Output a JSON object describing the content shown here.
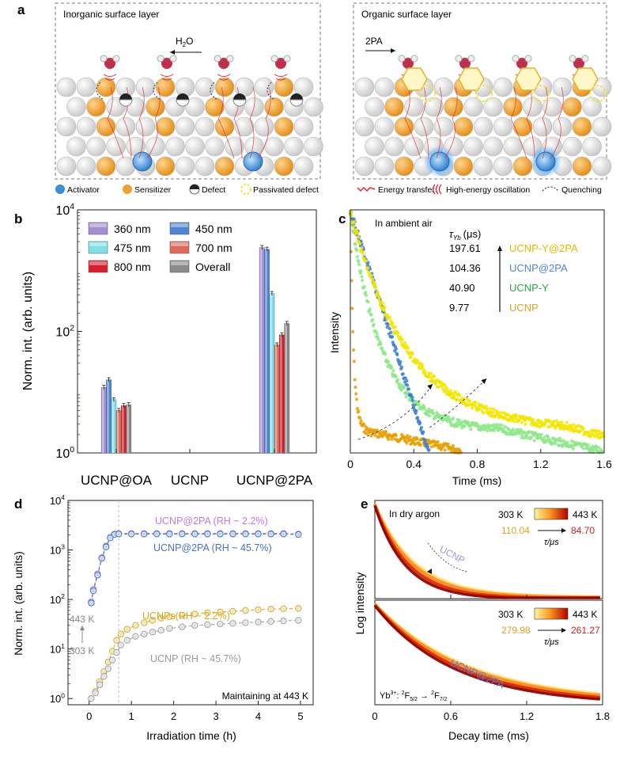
{
  "panel_letters": {
    "a": "a",
    "b": "b",
    "c": "c",
    "d": "d",
    "e": "e"
  },
  "panel_a": {
    "left_title": "Inorganic surface layer",
    "right_title": "Organic surface layer",
    "water_label_main": "H",
    "water_label_sub": "2",
    "water_label_end": "O",
    "ligand_label": "2PA",
    "legend": [
      {
        "icon": "activator-icon",
        "label": "Activator"
      },
      {
        "icon": "sensitizer-icon",
        "label": "Sensitizer"
      },
      {
        "icon": "defect-icon",
        "label": "Defect"
      },
      {
        "icon": "passivated-defect-icon",
        "label": "Passivated defect"
      },
      {
        "icon": "energy-transfer-icon",
        "label": "Energy transfer"
      },
      {
        "icon": "oscillation-icon",
        "label": "High-energy oscillation"
      },
      {
        "icon": "quenching-icon",
        "label": "Quenching"
      }
    ],
    "colors": {
      "activator": "#3a8fd9",
      "sensitizer": "#f0a030",
      "host": "#d6d6d6",
      "passivated": "#f3e34a",
      "energy": "#d8283a"
    }
  },
  "chart_data": [
    {
      "panel": "b",
      "type": "bar",
      "ylabel": "Norm. int. (arb. units)",
      "yscale": "log",
      "ylim": [
        1,
        10000
      ],
      "yticks": [
        {
          "base": "10",
          "exp": "0",
          "value": 1
        },
        {
          "base": "10",
          "exp": "2",
          "value": 100
        },
        {
          "base": "10",
          "exp": "4",
          "value": 10000
        }
      ],
      "categories": [
        "UCNP@OA",
        "UCNP",
        "UCNP@2PA"
      ],
      "series": [
        {
          "name": "360 nm",
          "color": "#a38fd6",
          "values": [
            12,
            1,
            2400
          ]
        },
        {
          "name": "450 nm",
          "color": "#4f86cf",
          "values": [
            16,
            1,
            2250
          ]
        },
        {
          "name": "475 nm",
          "color": "#7fe0e6",
          "values": [
            7.5,
            1,
            420
          ]
        },
        {
          "name": "700 nm",
          "color": "#e0685a",
          "values": [
            5.0,
            1,
            60
          ]
        },
        {
          "name": "800 nm",
          "color": "#d81e2a",
          "values": [
            6.0,
            1,
            88
          ]
        },
        {
          "name": "Overall",
          "color": "#8a8a8a",
          "values": [
            6.2,
            1,
            135
          ]
        }
      ]
    },
    {
      "panel": "c",
      "type": "scatter",
      "xlabel": "Time (ms)",
      "ylabel": "Intensity",
      "xlim": [
        0,
        1.6
      ],
      "xticks": [
        "0",
        "0.4",
        "0.8",
        "1.2",
        "1.6"
      ],
      "annotation": "In ambient air",
      "tau_label": "τ",
      "tau_sub": "Yb",
      "tau_unit": "(μs)",
      "series": [
        {
          "name": "UCNP-Y@2PA",
          "tau": "197.61",
          "tau_us": 197.61,
          "color": "#f2e600",
          "label_color": "#e8b800"
        },
        {
          "name": "UCNP@2PA",
          "tau": "104.36",
          "tau_us": 104.36,
          "color": "#3c7fd6",
          "label_color": "#4a86d4"
        },
        {
          "name": "UCNP-Y",
          "tau": "40.90",
          "tau_us": 40.9,
          "color": "#8ee88a",
          "label_color": "#2aa84a"
        },
        {
          "name": "UCNP",
          "tau": "9.77",
          "tau_us": 9.77,
          "color": "#e8a000",
          "label_color": "#e0a020"
        }
      ]
    },
    {
      "panel": "d",
      "type": "line",
      "xlabel": "Irradiation time (h)",
      "ylabel": "Norm. int. (arb. units)",
      "yscale": "log",
      "xlim": [
        -0.5,
        5.3
      ],
      "ylim": [
        0.75,
        10000
      ],
      "xticks": [
        "0",
        "1",
        "2",
        "3",
        "4",
        "5"
      ],
      "yticks": [
        {
          "base": "10",
          "exp": "0",
          "value": 1
        },
        {
          "base": "10",
          "exp": "1",
          "value": 10
        },
        {
          "base": "10",
          "exp": "2",
          "value": 100
        },
        {
          "base": "10",
          "exp": "3",
          "value": 1000
        },
        {
          "base": "10",
          "exp": "4",
          "value": 10000
        }
      ],
      "annotations": {
        "temp_high": "443 K",
        "temp_low": "303 K",
        "maintain": "Maintaining at 443 K"
      },
      "series": [
        {
          "name": "UCNP@2PA (RH ~ 2.2%)",
          "color": "#b87fe0",
          "label_color": "#c07ad8",
          "x": [
            0.05,
            0.1,
            0.2,
            0.3,
            0.4,
            0.5,
            0.6,
            0.7,
            1.0,
            1.3,
            1.6,
            1.9,
            2.2,
            2.5,
            2.8,
            3.1,
            3.4,
            3.7,
            4.0,
            4.3,
            4.6,
            4.95
          ],
          "y": [
            90,
            160,
            330,
            700,
            1200,
            1800,
            2100,
            2150,
            2150,
            2150,
            2150,
            2150,
            2150,
            2150,
            2150,
            2150,
            2150,
            2150,
            2150,
            2150,
            2150,
            2100
          ]
        },
        {
          "name": "UCNP@2PA (RH ~ 45.7%)",
          "color": "#4a7fd0",
          "label_color": "#4670cc",
          "x": [
            0.05,
            0.1,
            0.2,
            0.3,
            0.4,
            0.5,
            0.6,
            0.7,
            1.0,
            1.3,
            1.6,
            1.9,
            2.2,
            2.5,
            2.8,
            3.1,
            3.4,
            3.7,
            4.0,
            4.3,
            4.6,
            4.95
          ],
          "y": [
            85,
            150,
            310,
            680,
            1150,
            1750,
            2050,
            2100,
            2100,
            2100,
            2100,
            2100,
            2100,
            2100,
            2100,
            2100,
            2100,
            2100,
            2100,
            2100,
            2100,
            2050
          ]
        },
        {
          "name": "UCNPs(RH ~ 2.2%)",
          "color": "#d9b23a",
          "label_color": "#d8a820",
          "x": [
            0.05,
            0.15,
            0.25,
            0.35,
            0.45,
            0.55,
            0.65,
            0.75,
            0.9,
            1.1,
            1.3,
            1.5,
            1.7,
            1.9,
            2.2,
            2.5,
            2.8,
            3.1,
            3.4,
            3.7,
            4.0,
            4.3,
            4.6,
            4.95
          ],
          "y": [
            1.0,
            1.4,
            2.2,
            3.5,
            5.5,
            9,
            15,
            20,
            25,
            30,
            34,
            38,
            42,
            45,
            48,
            51,
            54,
            56,
            58,
            60,
            62,
            64,
            65,
            66
          ]
        },
        {
          "name": "UCNP (RH ~ 45.7%)",
          "color": "#a8a8a8",
          "label_color": "#9a9a9a",
          "x": [
            0.05,
            0.15,
            0.25,
            0.35,
            0.45,
            0.55,
            0.65,
            0.75,
            0.9,
            1.1,
            1.3,
            1.5,
            1.7,
            1.9,
            2.2,
            2.5,
            2.8,
            3.1,
            3.4,
            3.7,
            4.0,
            4.3,
            4.6,
            4.95
          ],
          "y": [
            1.0,
            1.3,
            1.9,
            2.8,
            4.0,
            6.0,
            8.5,
            12,
            15,
            18,
            20,
            22,
            24,
            26,
            28,
            30,
            31,
            32,
            33,
            34,
            35,
            36,
            37,
            38
          ]
        }
      ]
    },
    {
      "panel": "e",
      "type": "line",
      "xlabel": "Decay time (ms)",
      "ylabel": "Log intensity",
      "xlim": [
        0,
        1.8
      ],
      "xticks": [
        "0",
        "0.6",
        "1.2",
        "1.8"
      ],
      "annotation": "In dry argon",
      "top": {
        "sample": "UCNP",
        "t_low": "303 K",
        "t_high": "443 K",
        "tau_low": "110.04",
        "tau_high": "84.70",
        "tau_unit": "τ/μs"
      },
      "bottom": {
        "sample": "UCNP@2PA",
        "t_low": "303 K",
        "t_high": "443 K",
        "tau_low": "279.98",
        "tau_high": "261.27",
        "tau_unit": "τ/μs",
        "transition_ion": "Yb",
        "transition_ion_sup": "3+",
        "transition_from": "F",
        "transition_from_sup": "2",
        "transition_from_sub": "5/2",
        "transition_to": "F",
        "transition_to_sup": "2",
        "transition_to_sub": "7/2"
      },
      "colors": {
        "low": "#ffd85a",
        "high": "#b80000",
        "label": "#5a7fd0",
        "tau_low_color": "#e0a020",
        "tau_high_color": "#d02020"
      }
    }
  ]
}
